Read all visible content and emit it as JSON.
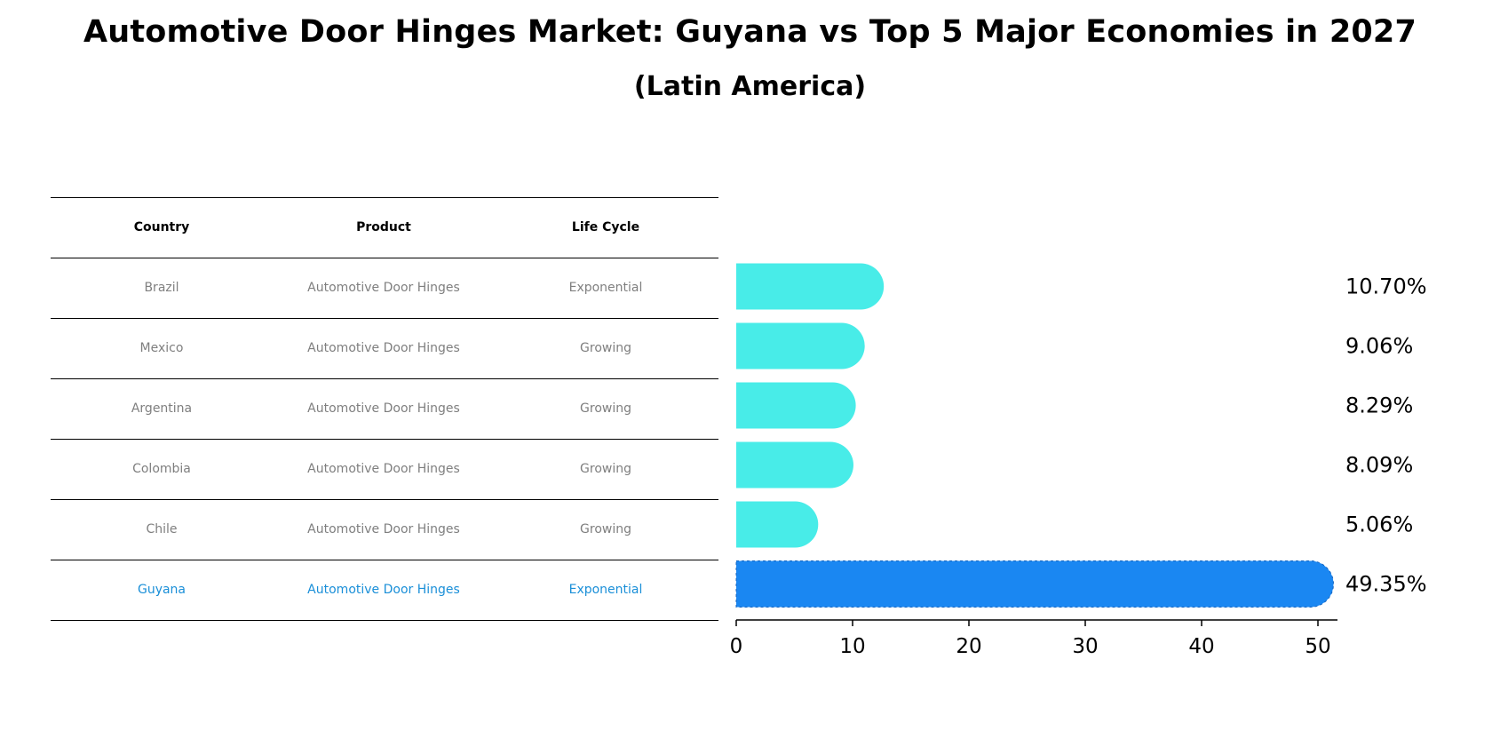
{
  "title": "Automotive Door Hinges Market: Guyana vs Top 5 Major Economies in 2027",
  "subtitle": "(Latin America)",
  "table": {
    "headers": [
      "Country",
      "Product",
      "Life Cycle"
    ],
    "rows": [
      [
        "Brazil",
        "Automotive Door Hinges",
        "Exponential"
      ],
      [
        "Mexico",
        "Automotive Door Hinges",
        "Growing"
      ],
      [
        "Argentina",
        "Automotive Door Hinges",
        "Growing"
      ],
      [
        "Colombia",
        "Automotive Door Hinges",
        "Growing"
      ],
      [
        "Chile",
        "Automotive Door Hinges",
        "Growing"
      ],
      [
        "Guyana",
        "Automotive Door Hinges",
        "Exponential"
      ]
    ]
  },
  "colors": {
    "bar": "#48ece8",
    "highlight_bar": "#1a87f2",
    "highlight_text": "#1a8fd8",
    "muted_text": "#7f7f7f"
  },
  "chart_data": {
    "type": "bar",
    "orientation": "horizontal",
    "categories": [
      "Brazil",
      "Mexico",
      "Argentina",
      "Colombia",
      "Chile",
      "Guyana"
    ],
    "values": [
      10.7,
      9.06,
      8.29,
      8.09,
      5.06,
      49.35
    ],
    "value_labels": [
      "10.70%",
      "9.06%",
      "8.29%",
      "8.09%",
      "5.06%",
      "49.35%"
    ],
    "highlight": "Guyana",
    "xlim": [
      0,
      52
    ],
    "xticks": [
      "0",
      "10",
      "20",
      "30",
      "40",
      "50"
    ],
    "xlabel": "",
    "ylabel": "",
    "grid": false
  }
}
